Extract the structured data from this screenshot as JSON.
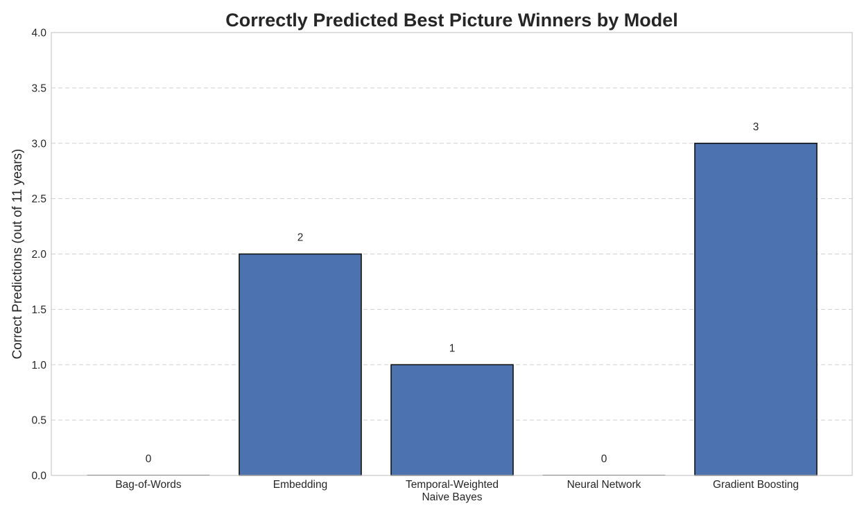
{
  "chart_data": {
    "type": "bar",
    "title": "Correctly Predicted Best Picture Winners by Model",
    "xlabel": "",
    "ylabel": "Correct Predictions (out of 11 years)",
    "categories": [
      [
        "Bag-of-Words"
      ],
      [
        "Embedding"
      ],
      [
        "Temporal-Weighted",
        "Naive Bayes"
      ],
      [
        "Neural Network"
      ],
      [
        "Gradient Boosting"
      ]
    ],
    "values": [
      0,
      2,
      1,
      0,
      3
    ],
    "data_labels": [
      "0",
      "2",
      "1",
      "0",
      "3"
    ],
    "ylim": [
      0,
      4.0
    ],
    "yticks": [
      0.0,
      0.5,
      1.0,
      1.5,
      2.0,
      2.5,
      3.0,
      3.5,
      4.0
    ],
    "ytick_labels": [
      "0.0",
      "0.5",
      "1.0",
      "1.5",
      "2.0",
      "2.5",
      "3.0",
      "3.5",
      "4.0"
    ],
    "grid": true,
    "bar_color": "#4c72b0",
    "bar_edge_color": "#111111"
  }
}
